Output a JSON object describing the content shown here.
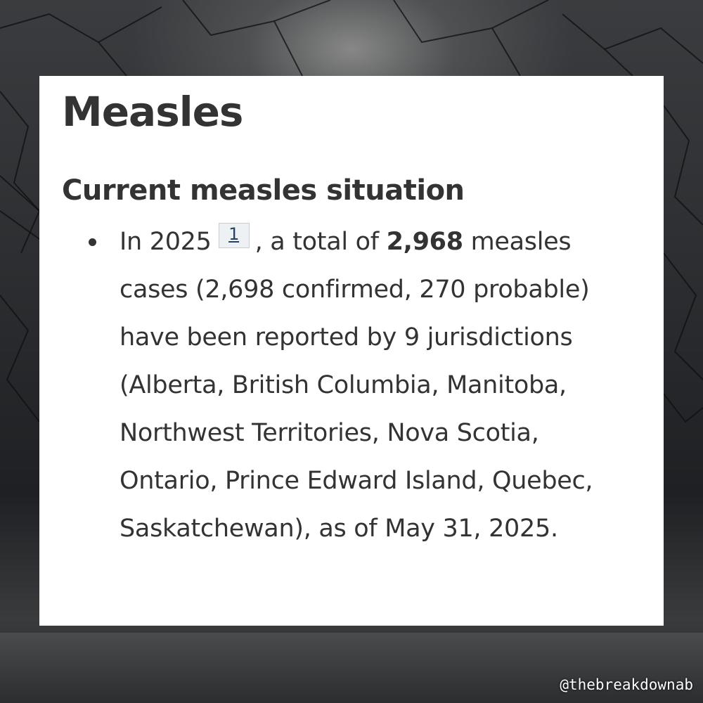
{
  "page": {
    "title": "Measles",
    "section_heading": "Current measles situation"
  },
  "bullet": {
    "prefix": "In 2025",
    "footnote_label": "1",
    "text_before_total": ", a total of ",
    "total_cases": "2,968",
    "text_after_total": " measles cases (2,698 confirmed, 270 probable) have been reported by 9 jurisdictions (Alberta, British Columbia, Manitoba, Northwest Territories, Nova Scotia, Ontario, Prince Edward Island, Quebec, Saskatchewan), as of May 31, 2025."
  },
  "watermark": {
    "handle": "@thebreakdownab"
  },
  "colors": {
    "text": "#333333",
    "card_background": "#ffffff",
    "footnote_background": "#eef1f4",
    "footnote_link": "#284162"
  }
}
